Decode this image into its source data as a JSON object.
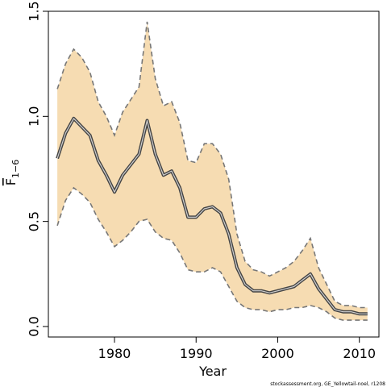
{
  "chart_data": {
    "type": "line",
    "xlabel": "Year",
    "ylabel_main": "F",
    "ylabel_sub": "1−6",
    "xlim": [
      1971.9,
      2012.4
    ],
    "ylim": [
      -0.05,
      1.5
    ],
    "x_ticks": [
      1980,
      1990,
      2000,
      2010
    ],
    "y_ticks": [
      0.0,
      0.5,
      1.0,
      1.5
    ],
    "y_tick_labels": [
      "0.0",
      "0.5",
      "1.0",
      "1.5"
    ],
    "grid": false,
    "x": [
      1973,
      1974,
      1975,
      1976,
      1977,
      1978,
      1979,
      1980,
      1981,
      1982,
      1983,
      1984,
      1985,
      1986,
      1987,
      1988,
      1989,
      1990,
      1991,
      1992,
      1993,
      1994,
      1995,
      1996,
      1997,
      1998,
      1999,
      2000,
      2001,
      2002,
      2003,
      2004,
      2005,
      2006,
      2007,
      2008,
      2009,
      2010,
      2011
    ],
    "series": [
      {
        "role": "estimate",
        "color": "#444444",
        "values": [
          0.8,
          0.92,
          0.99,
          0.95,
          0.91,
          0.79,
          0.72,
          0.64,
          0.72,
          0.77,
          0.82,
          0.98,
          0.82,
          0.72,
          0.74,
          0.66,
          0.52,
          0.52,
          0.56,
          0.57,
          0.54,
          0.44,
          0.28,
          0.2,
          0.17,
          0.17,
          0.16,
          0.17,
          0.18,
          0.19,
          0.22,
          0.25,
          0.18,
          0.13,
          0.08,
          0.07,
          0.07,
          0.06,
          0.06
        ]
      },
      {
        "role": "upper",
        "color": "#777777",
        "values": [
          1.13,
          1.25,
          1.32,
          1.28,
          1.21,
          1.07,
          1.0,
          0.91,
          1.02,
          1.08,
          1.14,
          1.45,
          1.18,
          1.05,
          1.07,
          0.97,
          0.79,
          0.78,
          0.87,
          0.87,
          0.82,
          0.7,
          0.44,
          0.31,
          0.27,
          0.26,
          0.24,
          0.26,
          0.28,
          0.31,
          0.36,
          0.42,
          0.28,
          0.2,
          0.12,
          0.1,
          0.1,
          0.09,
          0.09
        ]
      },
      {
        "role": "lower",
        "color": "#777777",
        "values": [
          0.48,
          0.6,
          0.66,
          0.63,
          0.59,
          0.51,
          0.45,
          0.38,
          0.41,
          0.45,
          0.5,
          0.51,
          0.45,
          0.42,
          0.41,
          0.35,
          0.27,
          0.26,
          0.26,
          0.28,
          0.26,
          0.19,
          0.12,
          0.09,
          0.08,
          0.08,
          0.07,
          0.08,
          0.08,
          0.09,
          0.09,
          0.1,
          0.09,
          0.07,
          0.04,
          0.03,
          0.03,
          0.03,
          0.03
        ]
      }
    ],
    "band_color": "#f6dcb2"
  },
  "credit": "stockassessment.org, GE_Yellowtail-noel, r1208"
}
